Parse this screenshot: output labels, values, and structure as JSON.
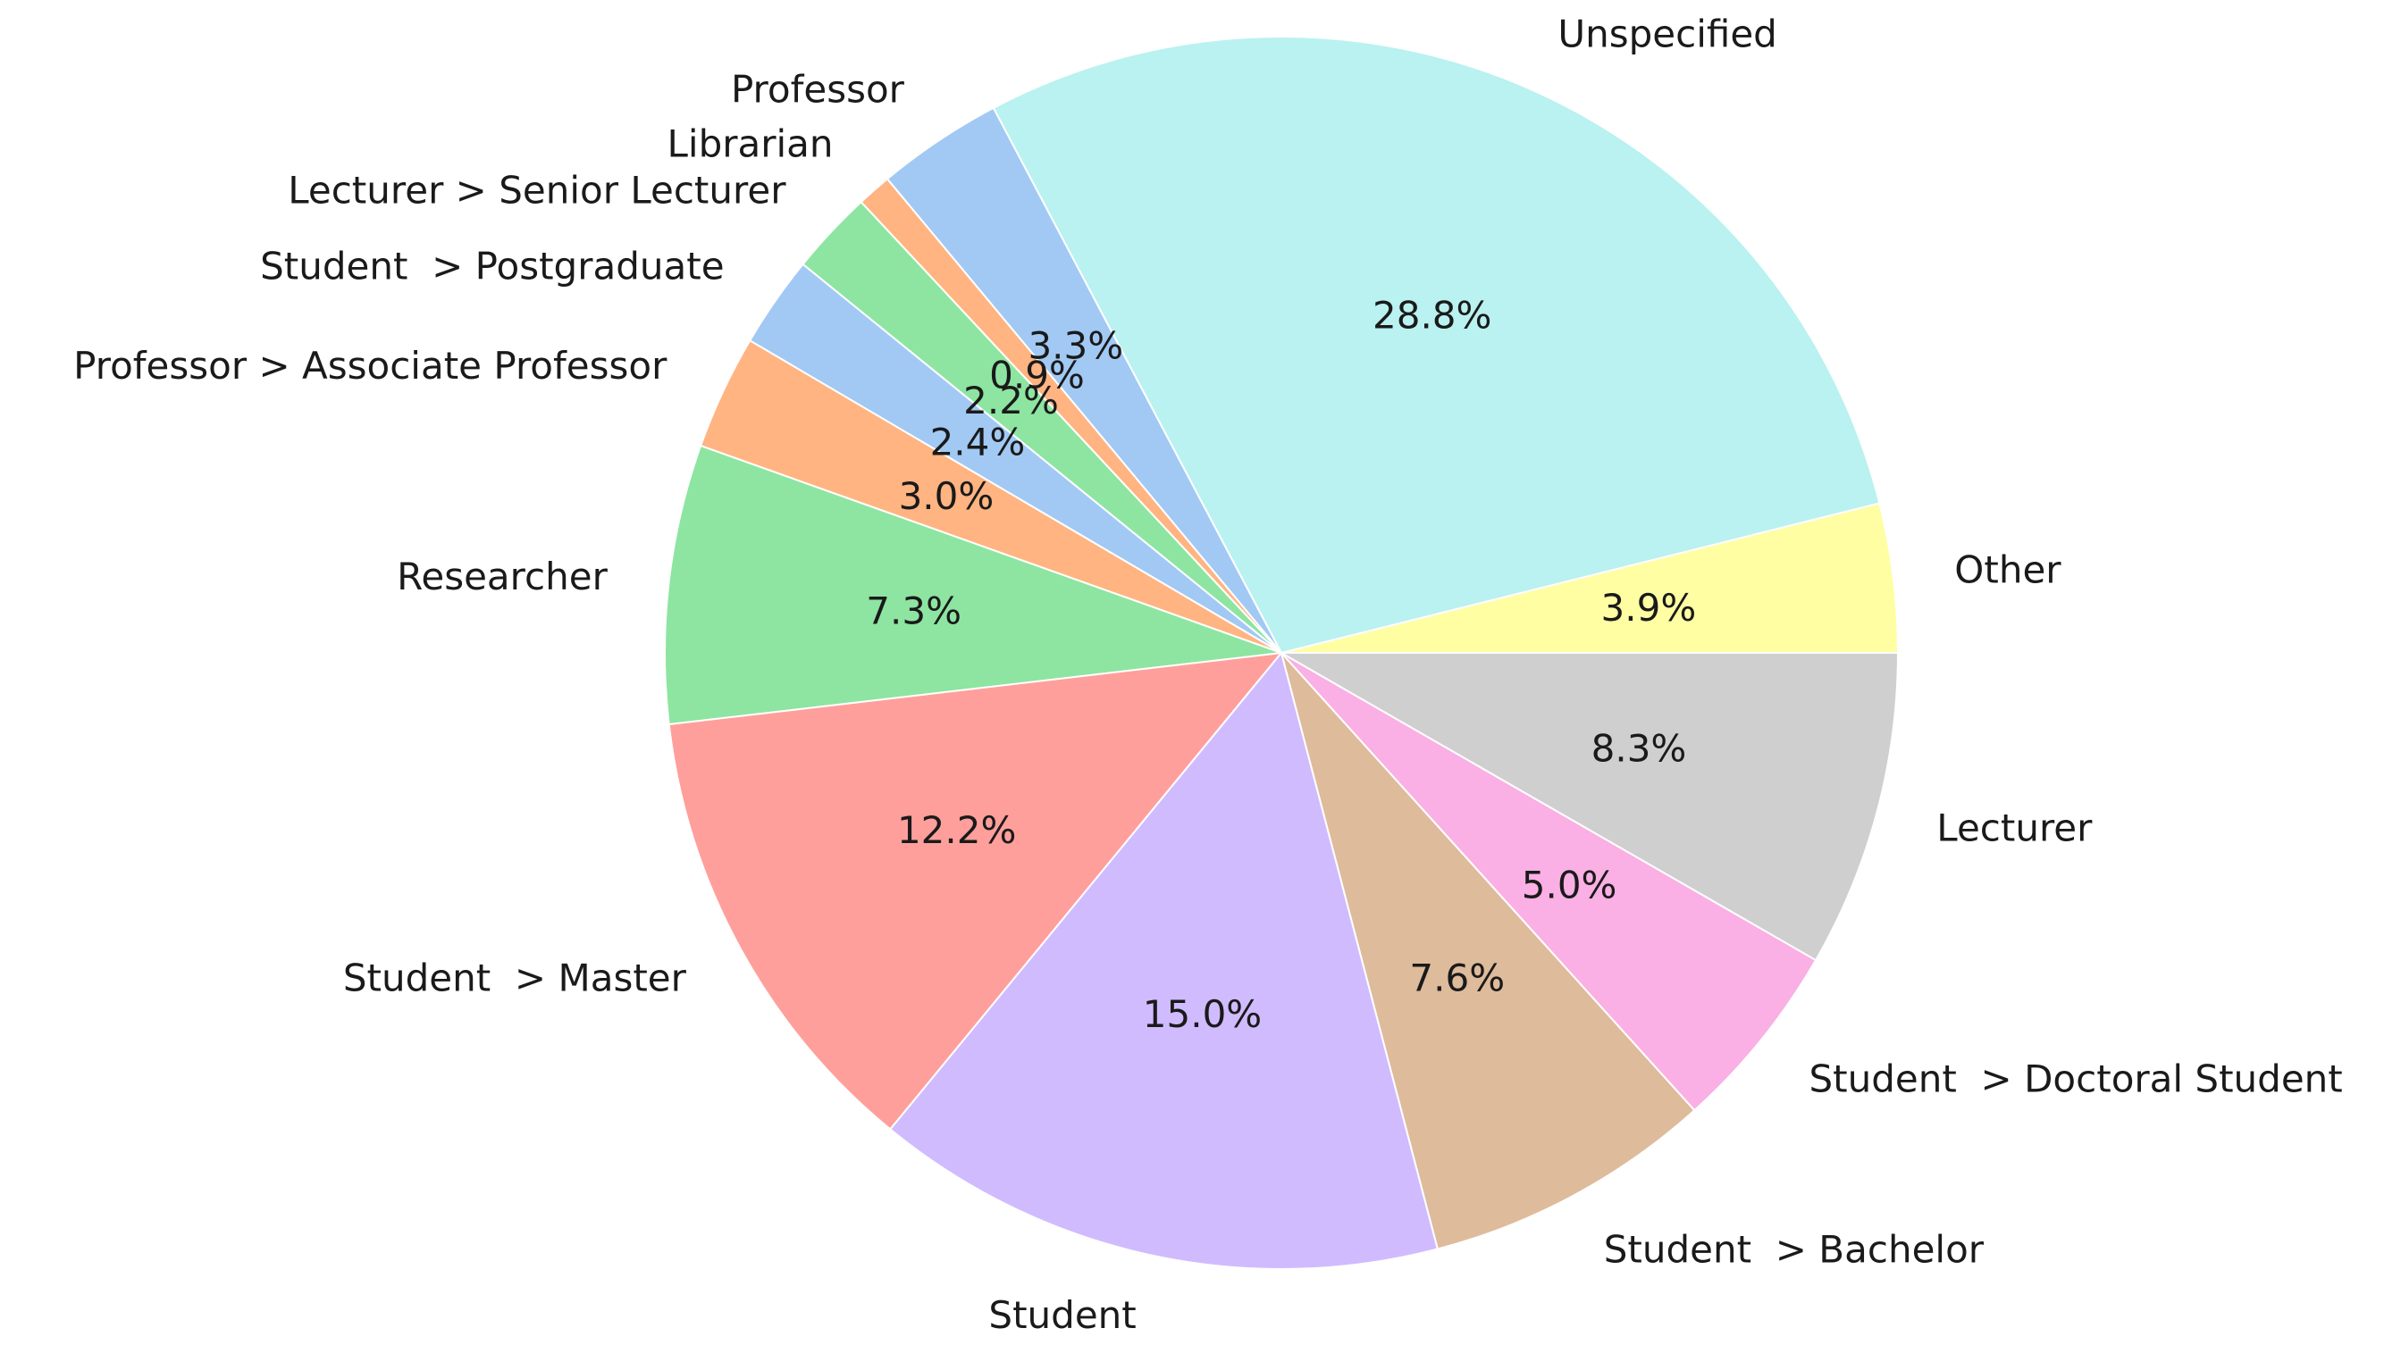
{
  "chart_data": {
    "type": "pie",
    "title": "",
    "start_angle_deg": 0,
    "direction": "counterclockwise",
    "label_format": "{value:.1f}%",
    "slices": [
      {
        "label": "Other",
        "value": 3.9,
        "color": "#fffea3"
      },
      {
        "label": "Unspecified",
        "value": 28.8,
        "color": "#b9f2f0"
      },
      {
        "label": "Professor",
        "value": 3.3,
        "color": "#a1c9f4"
      },
      {
        "label": "Librarian",
        "value": 0.9,
        "color": "#ffb482"
      },
      {
        "label": "Lecturer > Senior Lecturer",
        "value": 2.2,
        "color": "#8de5a1"
      },
      {
        "label": "Student  > Postgraduate",
        "value": 2.4,
        "color": "#a1c9f4"
      },
      {
        "label": "Professor > Associate Professor",
        "value": 3.0,
        "color": "#ffb482"
      },
      {
        "label": "Researcher",
        "value": 7.3,
        "color": "#8de5a1"
      },
      {
        "label": "Student  > Master",
        "value": 12.2,
        "color": "#ff9f9b"
      },
      {
        "label": "Student",
        "value": 15.0,
        "color": "#d0bbff"
      },
      {
        "label": "Student  > Bachelor",
        "value": 7.6,
        "color": "#debb9b"
      },
      {
        "label": "Student  > Doctoral Student",
        "value": 5.0,
        "color": "#fab0e4"
      },
      {
        "label": "Lecturer",
        "value": 8.3,
        "color": "#cfcfcf"
      }
    ]
  }
}
